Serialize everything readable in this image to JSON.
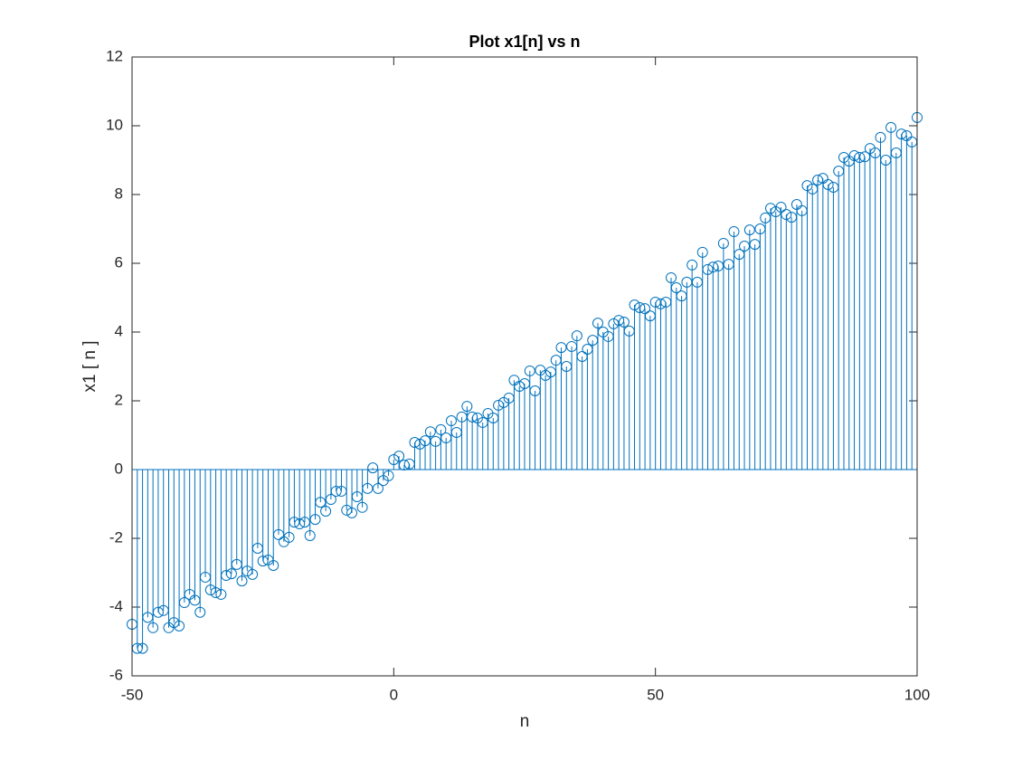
{
  "chart_data": {
    "type": "stem",
    "title": "Plot x1[n] vs n",
    "xlabel": "n",
    "ylabel": "x1 [ n ]",
    "color": "#0072BD",
    "grid": false,
    "xlim": [
      -50,
      100
    ],
    "xticks": [
      -50,
      0,
      50,
      100
    ],
    "ylim": [
      -6,
      12
    ],
    "yticks": [
      -6,
      -4,
      -2,
      0,
      2,
      4,
      6,
      8,
      10,
      12
    ],
    "x": [
      -50,
      -49,
      -48,
      -47,
      -46,
      -45,
      -44,
      -43,
      -42,
      -41,
      -40,
      -39,
      -38,
      -37,
      -36,
      -35,
      -34,
      -33,
      -32,
      -31,
      -30,
      -29,
      -28,
      -27,
      -26,
      -25,
      -24,
      -23,
      -22,
      -21,
      -20,
      -19,
      -18,
      -17,
      -16,
      -15,
      -14,
      -13,
      -12,
      -11,
      -10,
      -9,
      -8,
      -7,
      -6,
      -5,
      -4,
      -3,
      -2,
      -1,
      0,
      1,
      2,
      3,
      4,
      5,
      6,
      7,
      8,
      9,
      10,
      11,
      12,
      13,
      14,
      15,
      16,
      17,
      18,
      19,
      20,
      21,
      22,
      23,
      24,
      25,
      26,
      27,
      28,
      29,
      30,
      31,
      32,
      33,
      34,
      35,
      36,
      37,
      38,
      39,
      40,
      41,
      42,
      43,
      44,
      45,
      46,
      47,
      48,
      49,
      50,
      51,
      52,
      53,
      54,
      55,
      56,
      57,
      58,
      59,
      60,
      61,
      62,
      63,
      64,
      65,
      66,
      67,
      68,
      69,
      70,
      71,
      72,
      73,
      74,
      75,
      76,
      77,
      78,
      79,
      80,
      81,
      82,
      83,
      84,
      85,
      86,
      87,
      88,
      89,
      90,
      91,
      92,
      93,
      94,
      95,
      96,
      97,
      98,
      99,
      100
    ],
    "values": [
      -4.5,
      -5.2,
      -5.2,
      -4.3,
      -4.6,
      -4.15,
      -4.1,
      -4.6,
      -4.45,
      -4.55,
      -3.87,
      -3.63,
      -3.8,
      -4.15,
      -3.13,
      -3.5,
      -3.58,
      -3.63,
      -3.08,
      -3.03,
      -2.76,
      -3.24,
      -2.95,
      -3.05,
      -2.29,
      -2.66,
      -2.63,
      -2.79,
      -1.89,
      -2.1,
      -1.97,
      -1.53,
      -1.58,
      -1.53,
      -1.92,
      -1.45,
      -0.95,
      -1.21,
      -0.87,
      -0.63,
      -0.63,
      -1.18,
      -1.26,
      -0.79,
      -1.1,
      -0.55,
      0.05,
      -0.55,
      -0.32,
      -0.18,
      0.29,
      0.39,
      0.13,
      0.16,
      0.79,
      0.74,
      0.84,
      1.1,
      0.82,
      1.16,
      0.92,
      1.42,
      1.08,
      1.53,
      1.84,
      1.53,
      1.5,
      1.37,
      1.63,
      1.5,
      1.87,
      1.95,
      2.08,
      2.6,
      2.42,
      2.5,
      2.87,
      2.29,
      2.89,
      2.74,
      2.84,
      3.18,
      3.55,
      3.0,
      3.58,
      3.89,
      3.29,
      3.5,
      3.76,
      4.26,
      4.0,
      3.87,
      4.24,
      4.34,
      4.29,
      4.03,
      4.79,
      4.71,
      4.68,
      4.47,
      4.87,
      4.82,
      4.87,
      5.58,
      5.29,
      5.05,
      5.45,
      5.95,
      5.45,
      6.32,
      5.82,
      5.89,
      5.92,
      6.58,
      5.97,
      6.92,
      6.26,
      6.5,
      6.97,
      6.55,
      7.0,
      7.32,
      7.6,
      7.5,
      7.63,
      7.42,
      7.34,
      7.71,
      7.53,
      8.26,
      8.16,
      8.42,
      8.47,
      8.29,
      8.21,
      8.68,
      9.08,
      8.97,
      9.13,
      9.08,
      9.1,
      9.34,
      9.21,
      9.66,
      9.0,
      9.95,
      9.21,
      9.76,
      9.71,
      9.53,
      10.24
    ]
  }
}
